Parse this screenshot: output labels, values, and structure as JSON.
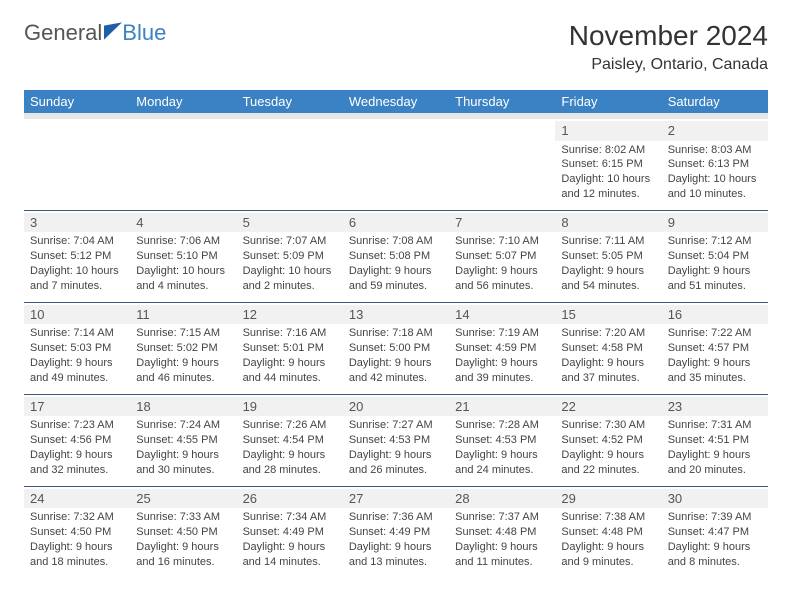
{
  "logo": {
    "word1": "General",
    "word2": "Blue"
  },
  "title": "November 2024",
  "location": "Paisley, Ontario, Canada",
  "day_headers": [
    "Sunday",
    "Monday",
    "Tuesday",
    "Wednesday",
    "Thursday",
    "Friday",
    "Saturday"
  ],
  "colors": {
    "header_bg": "#3b82c4",
    "header_fg": "#ffffff",
    "row_divider": "#3b5a80",
    "daynum_bg": "#f1f1f1",
    "page_bg": "#ffffff",
    "text": "#333333"
  },
  "weeks": [
    [
      null,
      null,
      null,
      null,
      null,
      {
        "n": "1",
        "sunrise": "Sunrise: 8:02 AM",
        "sunset": "Sunset: 6:15 PM",
        "day1": "Daylight: 10 hours",
        "day2": "and 12 minutes."
      },
      {
        "n": "2",
        "sunrise": "Sunrise: 8:03 AM",
        "sunset": "Sunset: 6:13 PM",
        "day1": "Daylight: 10 hours",
        "day2": "and 10 minutes."
      }
    ],
    [
      {
        "n": "3",
        "sunrise": "Sunrise: 7:04 AM",
        "sunset": "Sunset: 5:12 PM",
        "day1": "Daylight: 10 hours",
        "day2": "and 7 minutes."
      },
      {
        "n": "4",
        "sunrise": "Sunrise: 7:06 AM",
        "sunset": "Sunset: 5:10 PM",
        "day1": "Daylight: 10 hours",
        "day2": "and 4 minutes."
      },
      {
        "n": "5",
        "sunrise": "Sunrise: 7:07 AM",
        "sunset": "Sunset: 5:09 PM",
        "day1": "Daylight: 10 hours",
        "day2": "and 2 minutes."
      },
      {
        "n": "6",
        "sunrise": "Sunrise: 7:08 AM",
        "sunset": "Sunset: 5:08 PM",
        "day1": "Daylight: 9 hours",
        "day2": "and 59 minutes."
      },
      {
        "n": "7",
        "sunrise": "Sunrise: 7:10 AM",
        "sunset": "Sunset: 5:07 PM",
        "day1": "Daylight: 9 hours",
        "day2": "and 56 minutes."
      },
      {
        "n": "8",
        "sunrise": "Sunrise: 7:11 AM",
        "sunset": "Sunset: 5:05 PM",
        "day1": "Daylight: 9 hours",
        "day2": "and 54 minutes."
      },
      {
        "n": "9",
        "sunrise": "Sunrise: 7:12 AM",
        "sunset": "Sunset: 5:04 PM",
        "day1": "Daylight: 9 hours",
        "day2": "and 51 minutes."
      }
    ],
    [
      {
        "n": "10",
        "sunrise": "Sunrise: 7:14 AM",
        "sunset": "Sunset: 5:03 PM",
        "day1": "Daylight: 9 hours",
        "day2": "and 49 minutes."
      },
      {
        "n": "11",
        "sunrise": "Sunrise: 7:15 AM",
        "sunset": "Sunset: 5:02 PM",
        "day1": "Daylight: 9 hours",
        "day2": "and 46 minutes."
      },
      {
        "n": "12",
        "sunrise": "Sunrise: 7:16 AM",
        "sunset": "Sunset: 5:01 PM",
        "day1": "Daylight: 9 hours",
        "day2": "and 44 minutes."
      },
      {
        "n": "13",
        "sunrise": "Sunrise: 7:18 AM",
        "sunset": "Sunset: 5:00 PM",
        "day1": "Daylight: 9 hours",
        "day2": "and 42 minutes."
      },
      {
        "n": "14",
        "sunrise": "Sunrise: 7:19 AM",
        "sunset": "Sunset: 4:59 PM",
        "day1": "Daylight: 9 hours",
        "day2": "and 39 minutes."
      },
      {
        "n": "15",
        "sunrise": "Sunrise: 7:20 AM",
        "sunset": "Sunset: 4:58 PM",
        "day1": "Daylight: 9 hours",
        "day2": "and 37 minutes."
      },
      {
        "n": "16",
        "sunrise": "Sunrise: 7:22 AM",
        "sunset": "Sunset: 4:57 PM",
        "day1": "Daylight: 9 hours",
        "day2": "and 35 minutes."
      }
    ],
    [
      {
        "n": "17",
        "sunrise": "Sunrise: 7:23 AM",
        "sunset": "Sunset: 4:56 PM",
        "day1": "Daylight: 9 hours",
        "day2": "and 32 minutes."
      },
      {
        "n": "18",
        "sunrise": "Sunrise: 7:24 AM",
        "sunset": "Sunset: 4:55 PM",
        "day1": "Daylight: 9 hours",
        "day2": "and 30 minutes."
      },
      {
        "n": "19",
        "sunrise": "Sunrise: 7:26 AM",
        "sunset": "Sunset: 4:54 PM",
        "day1": "Daylight: 9 hours",
        "day2": "and 28 minutes."
      },
      {
        "n": "20",
        "sunrise": "Sunrise: 7:27 AM",
        "sunset": "Sunset: 4:53 PM",
        "day1": "Daylight: 9 hours",
        "day2": "and 26 minutes."
      },
      {
        "n": "21",
        "sunrise": "Sunrise: 7:28 AM",
        "sunset": "Sunset: 4:53 PM",
        "day1": "Daylight: 9 hours",
        "day2": "and 24 minutes."
      },
      {
        "n": "22",
        "sunrise": "Sunrise: 7:30 AM",
        "sunset": "Sunset: 4:52 PM",
        "day1": "Daylight: 9 hours",
        "day2": "and 22 minutes."
      },
      {
        "n": "23",
        "sunrise": "Sunrise: 7:31 AM",
        "sunset": "Sunset: 4:51 PM",
        "day1": "Daylight: 9 hours",
        "day2": "and 20 minutes."
      }
    ],
    [
      {
        "n": "24",
        "sunrise": "Sunrise: 7:32 AM",
        "sunset": "Sunset: 4:50 PM",
        "day1": "Daylight: 9 hours",
        "day2": "and 18 minutes."
      },
      {
        "n": "25",
        "sunrise": "Sunrise: 7:33 AM",
        "sunset": "Sunset: 4:50 PM",
        "day1": "Daylight: 9 hours",
        "day2": "and 16 minutes."
      },
      {
        "n": "26",
        "sunrise": "Sunrise: 7:34 AM",
        "sunset": "Sunset: 4:49 PM",
        "day1": "Daylight: 9 hours",
        "day2": "and 14 minutes."
      },
      {
        "n": "27",
        "sunrise": "Sunrise: 7:36 AM",
        "sunset": "Sunset: 4:49 PM",
        "day1": "Daylight: 9 hours",
        "day2": "and 13 minutes."
      },
      {
        "n": "28",
        "sunrise": "Sunrise: 7:37 AM",
        "sunset": "Sunset: 4:48 PM",
        "day1": "Daylight: 9 hours",
        "day2": "and 11 minutes."
      },
      {
        "n": "29",
        "sunrise": "Sunrise: 7:38 AM",
        "sunset": "Sunset: 4:48 PM",
        "day1": "Daylight: 9 hours",
        "day2": "and 9 minutes."
      },
      {
        "n": "30",
        "sunrise": "Sunrise: 7:39 AM",
        "sunset": "Sunset: 4:47 PM",
        "day1": "Daylight: 9 hours",
        "day2": "and 8 minutes."
      }
    ]
  ]
}
